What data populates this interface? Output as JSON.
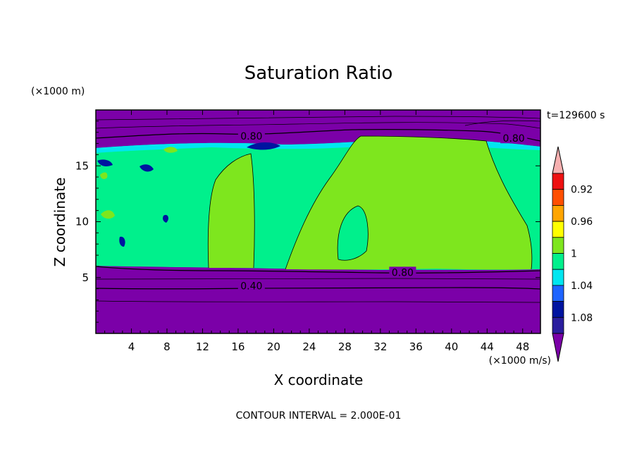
{
  "chart_data": {
    "type": "contour",
    "title": "Saturation Ratio",
    "xlabel": "X coordinate",
    "ylabel": "Z coordinate",
    "x_unit": "(×1000 m/s)",
    "y_unit": "(×1000 m)",
    "time_label": "t=129600 s",
    "footer": "CONTOUR INTERVAL = 2.000E-01",
    "xlim": [
      0,
      50
    ],
    "ylim": [
      0,
      20
    ],
    "x_ticks": [
      4,
      8,
      12,
      16,
      20,
      24,
      28,
      32,
      36,
      40,
      44,
      48
    ],
    "y_ticks": [
      5,
      10,
      15
    ],
    "contour_labels": [
      {
        "text": "0.80",
        "x": 17.5,
        "y": 17.6
      },
      {
        "text": "0.80",
        "x": 47.0,
        "y": 17.4
      },
      {
        "text": "0.80",
        "x": 34.5,
        "y": 5.4
      },
      {
        "text": "0.40",
        "x": 17.5,
        "y": 4.2
      }
    ],
    "colorbar": {
      "levels": [
        "0.92",
        "0.96",
        "1",
        "1.04",
        "1.08"
      ],
      "colors": [
        "#7b00a8",
        "#2a1e9e",
        "#0014a0",
        "#1e64ff",
        "#00e6f0",
        "#00f08c",
        "#7ee61e",
        "#ffff00",
        "#ffa500",
        "#ff4f00",
        "#ee1111",
        "#f7b0b0"
      ]
    },
    "fill_colors": {
      "low": "#7b00a8",
      "moist": "#00f08c",
      "saturated": "#7ee61e",
      "edge": "#00e6f0",
      "deep": "#0014a0"
    }
  }
}
